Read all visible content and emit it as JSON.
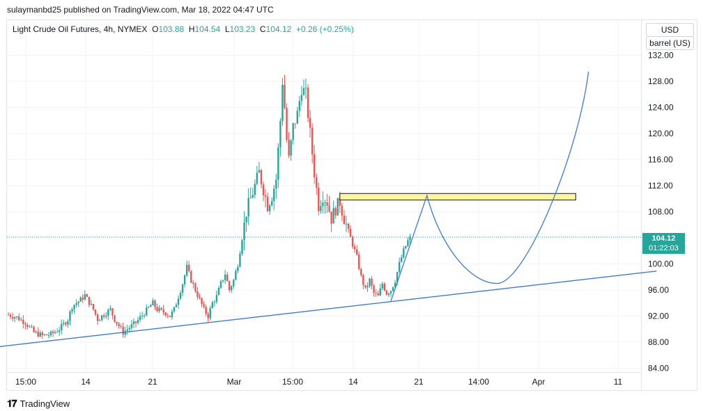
{
  "publisher_line": "sulaymanbd25 published on TradingView.com, Mar 18, 2022 04:47 UTC",
  "legend": {
    "symbol": "Light Crude Oil Futures, 4h, NYMEX",
    "open_label": "O",
    "open": "103.88",
    "high_label": "H",
    "high": "104.54",
    "low_label": "L",
    "low": "103.23",
    "close_label": "C",
    "close": "104.12",
    "change": "+0.26 (+0.25%)"
  },
  "currency": "USD",
  "unit": "barrel (US)",
  "last_price": "104.12",
  "countdown": "01:22:03",
  "footer_brand": "TradingView",
  "colors": {
    "up": "#26a69a",
    "down": "#ef5350",
    "drawing": "#3c78d8",
    "zone": "#fff59d"
  },
  "chart_data": {
    "type": "candlestick",
    "symbol": "Light Crude Oil Futures",
    "interval": "4h",
    "exchange": "NYMEX",
    "ylim": [
      84,
      133
    ],
    "y_ticks": [
      "84.00",
      "88.00",
      "92.00",
      "96.00",
      "100.00",
      "104.00",
      "108.00",
      "112.00",
      "116.00",
      "120.00",
      "124.00",
      "128.00",
      "132.00"
    ],
    "x_ticks": [
      "15:00",
      "14",
      "21",
      "Mar",
      "15:00",
      "14",
      "21",
      "14:00",
      "Apr",
      "11"
    ],
    "close_path": [
      [
        0,
        92.2
      ],
      [
        4,
        91.8
      ],
      [
        8,
        91.0
      ],
      [
        12,
        89.5
      ],
      [
        16,
        89.0
      ],
      [
        20,
        89.2
      ],
      [
        24,
        90.0
      ],
      [
        28,
        91.5
      ],
      [
        30,
        93.5
      ],
      [
        34,
        94.5
      ],
      [
        36,
        95.2
      ],
      [
        40,
        93.0
      ],
      [
        42,
        91.5
      ],
      [
        46,
        92.5
      ],
      [
        48,
        93.0
      ],
      [
        50,
        91.5
      ],
      [
        54,
        89.5
      ],
      [
        56,
        90.0
      ],
      [
        60,
        91.0
      ],
      [
        64,
        92.5
      ],
      [
        68,
        94.0
      ],
      [
        70,
        93.0
      ],
      [
        74,
        92.5
      ],
      [
        76,
        92.0
      ],
      [
        78,
        93.0
      ],
      [
        82,
        97.0
      ],
      [
        84,
        99.5
      ],
      [
        86,
        97.5
      ],
      [
        88,
        96.0
      ],
      [
        90,
        94.5
      ],
      [
        92,
        93.0
      ],
      [
        94,
        92.0
      ],
      [
        96,
        94.0
      ],
      [
        98,
        95.0
      ],
      [
        100,
        97.0
      ],
      [
        102,
        98.5
      ],
      [
        104,
        96.0
      ],
      [
        106,
        97.5
      ],
      [
        108,
        100.0
      ],
      [
        110,
        104.0
      ],
      [
        112,
        108.0
      ],
      [
        114,
        110.0
      ],
      [
        116,
        112.0
      ],
      [
        118,
        114.0
      ],
      [
        120,
        111.5
      ],
      [
        122,
        109.0
      ],
      [
        124,
        110.5
      ],
      [
        126,
        113.0
      ],
      [
        128,
        122.0
      ],
      [
        129,
        128.0
      ],
      [
        130,
        124.0
      ],
      [
        131,
        119.0
      ],
      [
        132,
        116.0
      ],
      [
        133,
        118.5
      ],
      [
        134,
        121.0
      ],
      [
        136,
        123.0
      ],
      [
        138,
        127.0
      ],
      [
        140,
        126.0
      ],
      [
        142,
        120.0
      ],
      [
        144,
        114.0
      ],
      [
        146,
        109.0
      ],
      [
        148,
        110.5
      ],
      [
        150,
        109.5
      ],
      [
        152,
        107.0
      ],
      [
        154,
        108.5
      ],
      [
        156,
        109.5
      ],
      [
        158,
        107.0
      ],
      [
        160,
        105.0
      ],
      [
        162,
        103.0
      ],
      [
        164,
        101.0
      ],
      [
        166,
        98.0
      ],
      [
        168,
        96.0
      ],
      [
        170,
        97.5
      ],
      [
        172,
        95.5
      ],
      [
        174,
        95.0
      ],
      [
        176,
        97.0
      ],
      [
        178,
        95.5
      ],
      [
        180,
        96.0
      ],
      [
        182,
        97.5
      ],
      [
        184,
        100.0
      ],
      [
        186,
        102.0
      ],
      [
        188,
        103.5
      ],
      [
        189,
        104.12
      ]
    ],
    "annotations": {
      "resistance_zone": {
        "from": 109.8,
        "to": 110.8
      },
      "trendline": {
        "from": [
          -18,
          86.8
        ],
        "to": [
          305,
          98.9
        ]
      },
      "projection_peak": 110.5,
      "projection_trough": 97.0,
      "projection_end": 129.5
    }
  }
}
